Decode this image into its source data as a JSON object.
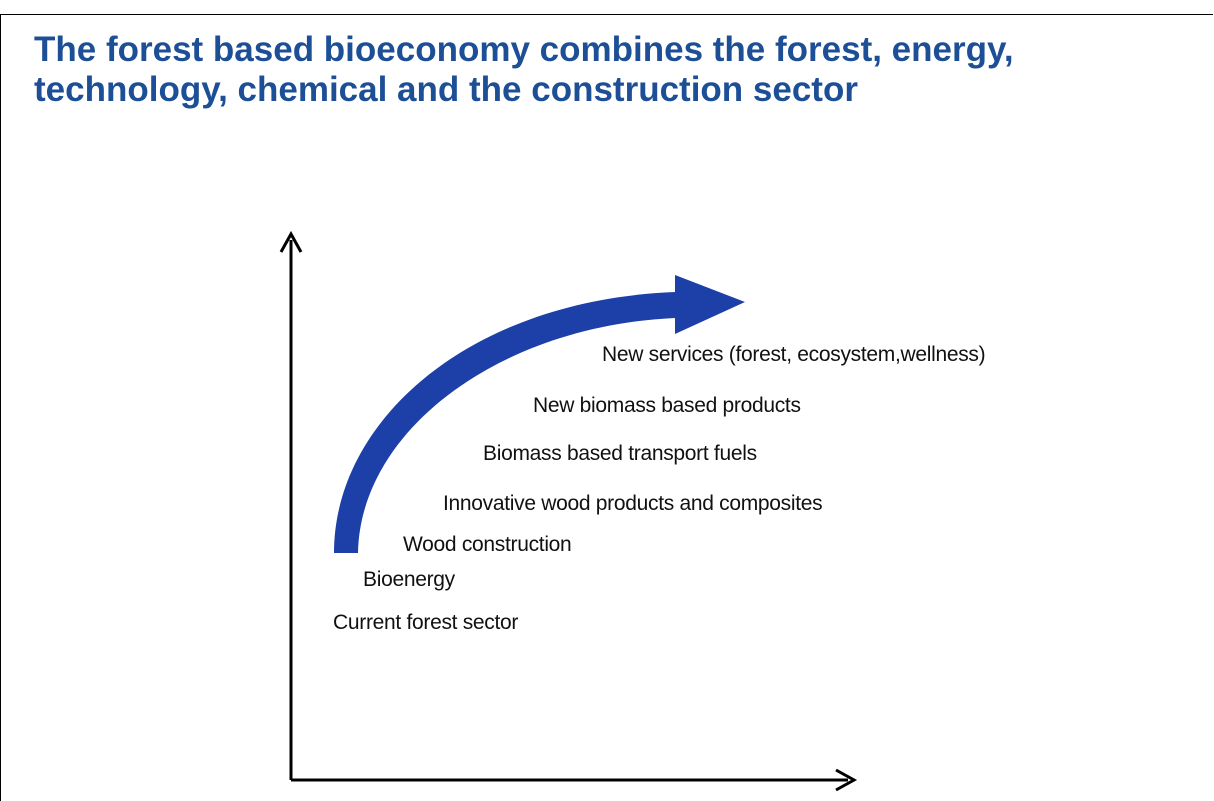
{
  "title": [
    "The forest based bioeconomy combines the forest, energy,",
    "technology, chemical and the construction sector"
  ],
  "steps": [
    "New services (forest, ecosystem,wellness)",
    "New biomass based products",
    "Biomass based transport fuels",
    "Innovative wood products and composites",
    "Wood construction",
    "Bioenergy",
    "Current forest sector"
  ]
}
